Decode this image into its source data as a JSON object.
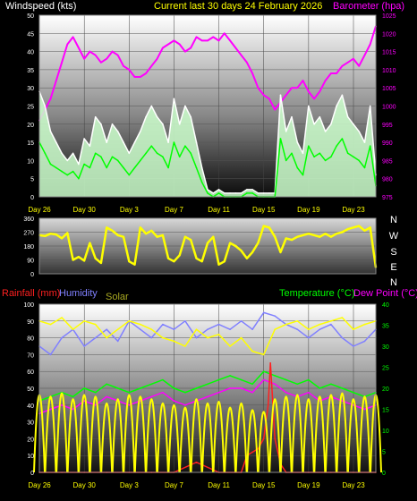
{
  "header": {
    "wind_label": "Windspeed (kts)",
    "title": "Current last 30 days 24 February 2026",
    "baro_label": "Barometer (hpa)"
  },
  "colors": {
    "wind_label": "#ffffff",
    "title": "#ffff00",
    "barometer": "#ff00ff",
    "wind_gust": "#ffffff",
    "wind_avg": "#00ff00",
    "wind_fill": "#ccffcc",
    "direction": "#ffff00",
    "rainfall": "#ff2020",
    "humidity": "#8080ff",
    "solar": "#ffff00",
    "temperature": "#00ff00",
    "dew_point": "#ff00ff",
    "tick_text": "#ffffff",
    "x_tick_text": "#ffff00",
    "compass_text": "#ffffff"
  },
  "chart_data": [
    {
      "type": "line",
      "name": "wind-barometer",
      "title": "Current last 30 days 24 February 2026",
      "y_left_label": "Windspeed (kts)",
      "y_left_ticks": [
        0,
        5,
        10,
        15,
        20,
        25,
        30,
        35,
        40,
        45,
        50
      ],
      "y_left_range": [
        0,
        50
      ],
      "y_right_label": "Barometer (hpa)",
      "y_right_ticks": [
        975,
        980,
        985,
        990,
        995,
        1000,
        1005,
        1010,
        1015,
        1020,
        1025
      ],
      "y_right_range": [
        975,
        1025
      ],
      "x_tick_labels": [
        "Day 26",
        "Day 30",
        "Day 3",
        "Day 7",
        "Day 11",
        "Day 15",
        "Day 19",
        "Day 23"
      ],
      "x_range": [
        0,
        30
      ],
      "x_tick_positions": [
        2,
        6,
        10,
        14,
        18,
        22,
        26,
        30
      ],
      "series": [
        {
          "name": "Barometer",
          "axis": "right",
          "x": [
            0,
            0.5,
            1,
            1.5,
            2,
            2.5,
            3,
            3.5,
            4,
            4.5,
            5,
            5.5,
            6,
            6.5,
            7,
            7.5,
            8,
            8.5,
            9,
            9.5,
            10,
            10.5,
            11,
            11.5,
            12,
            12.5,
            13,
            13.5,
            14,
            14.5,
            15,
            15.5,
            16,
            16.5,
            17,
            17.5,
            18,
            18.5,
            19,
            19.5,
            20,
            20.5,
            21,
            21.5,
            22,
            22.5,
            23,
            23.5,
            24,
            24.5,
            25,
            25.5,
            26,
            26.5,
            27,
            27.5,
            28,
            28.5,
            29,
            29.5,
            30
          ],
          "values": [
            996,
            999,
            1002,
            1007,
            1012,
            1017,
            1019,
            1016,
            1013,
            1015,
            1014,
            1012,
            1013,
            1015,
            1014,
            1011,
            1010,
            1008,
            1008,
            1009,
            1011,
            1013,
            1016,
            1017,
            1018,
            1017,
            1015,
            1016,
            1019,
            1018,
            1018,
            1019,
            1018,
            1020,
            1018,
            1016,
            1014,
            1012,
            1009,
            1005,
            1003,
            1002,
            999,
            1001,
            1003,
            1005,
            1005,
            1007,
            1004,
            1002,
            1004,
            1007,
            1009,
            1009,
            1011,
            1012,
            1013,
            1011,
            1014,
            1017,
            1022
          ]
        },
        {
          "name": "Wind gust",
          "axis": "left",
          "x": [
            0,
            0.5,
            1,
            1.5,
            2,
            2.5,
            3,
            3.5,
            4,
            4.5,
            5,
            5.5,
            6,
            6.5,
            7,
            7.5,
            8,
            8.5,
            9,
            9.5,
            10,
            10.5,
            11,
            11.5,
            12,
            12.5,
            13,
            13.5,
            14,
            14.5,
            15,
            15.5,
            16,
            16.5,
            17,
            17.5,
            18,
            18.5,
            19,
            19.5,
            20,
            20.5,
            21,
            21.5,
            22,
            22.5,
            23,
            23.5,
            24,
            24.5,
            25,
            25.5,
            26,
            26.5,
            27,
            27.5,
            28,
            28.5,
            29,
            29.5,
            30
          ],
          "values": [
            29,
            25,
            18,
            15,
            12,
            10,
            12,
            9,
            16,
            14,
            22,
            20,
            15,
            20,
            18,
            15,
            12,
            15,
            18,
            22,
            25,
            22,
            20,
            15,
            27,
            20,
            25,
            22,
            15,
            8,
            2,
            1,
            2,
            1,
            1,
            1,
            1,
            2,
            2,
            1,
            1,
            1,
            1,
            28,
            18,
            22,
            15,
            12,
            25,
            20,
            22,
            18,
            20,
            25,
            28,
            22,
            20,
            18,
            15,
            25,
            6
          ]
        },
        {
          "name": "Wind average",
          "axis": "left",
          "x": [
            0,
            0.5,
            1,
            1.5,
            2,
            2.5,
            3,
            3.5,
            4,
            4.5,
            5,
            5.5,
            6,
            6.5,
            7,
            7.5,
            8,
            8.5,
            9,
            9.5,
            10,
            10.5,
            11,
            11.5,
            12,
            12.5,
            13,
            13.5,
            14,
            14.5,
            15,
            15.5,
            16,
            16.5,
            17,
            17.5,
            18,
            18.5,
            19,
            19.5,
            20,
            20.5,
            21,
            21.5,
            22,
            22.5,
            23,
            23.5,
            24,
            24.5,
            25,
            25.5,
            26,
            26.5,
            27,
            27.5,
            28,
            28.5,
            29,
            29.5,
            30
          ],
          "values": [
            15,
            12,
            9,
            8,
            7,
            6,
            7,
            5,
            9,
            8,
            12,
            11,
            8,
            11,
            10,
            8,
            6,
            8,
            10,
            12,
            14,
            12,
            11,
            8,
            15,
            11,
            14,
            12,
            8,
            4,
            1,
            0,
            1,
            0,
            0,
            0,
            0,
            1,
            1,
            0,
            0,
            0,
            0,
            16,
            10,
            12,
            8,
            6,
            14,
            11,
            12,
            10,
            11,
            14,
            16,
            12,
            11,
            10,
            8,
            14,
            3
          ]
        }
      ]
    },
    {
      "type": "line",
      "name": "wind-direction",
      "y_left_ticks": [
        0,
        90,
        180,
        270,
        360
      ],
      "y_left_range": [
        0,
        360
      ],
      "compass_labels": [
        "N",
        "W",
        "S",
        "E",
        "N"
      ],
      "x_range": [
        0,
        30
      ],
      "series": [
        {
          "name": "Wind direction",
          "x": [
            0,
            0.5,
            1,
            1.5,
            2,
            2.5,
            3,
            3.5,
            4,
            4.5,
            5,
            5.5,
            6,
            6.5,
            7,
            7.5,
            8,
            8.5,
            9,
            9.5,
            10,
            10.5,
            11,
            11.5,
            12,
            12.5,
            13,
            13.5,
            14,
            14.5,
            15,
            15.5,
            16,
            16.5,
            17,
            17.5,
            18,
            18.5,
            19,
            19.5,
            20,
            20.5,
            21,
            21.5,
            22,
            22.5,
            23,
            23.5,
            24,
            24.5,
            25,
            25.5,
            26,
            26.5,
            27,
            27.5,
            28,
            28.5,
            29,
            29.5,
            30
          ],
          "values": [
            250,
            245,
            260,
            255,
            230,
            265,
            90,
            110,
            85,
            200,
            100,
            70,
            300,
            280,
            250,
            240,
            80,
            60,
            300,
            260,
            280,
            240,
            250,
            100,
            80,
            120,
            240,
            220,
            100,
            80,
            200,
            240,
            60,
            80,
            200,
            180,
            150,
            100,
            140,
            200,
            310,
            300,
            240,
            140,
            230,
            220,
            240,
            250,
            260,
            250,
            240,
            260,
            240,
            260,
            270,
            290,
            300,
            310,
            280,
            300,
            40
          ]
        }
      ]
    },
    {
      "type": "line",
      "name": "rain-humidity-solar-temperature",
      "y_left_ticks": [
        0,
        10,
        20,
        30,
        40,
        50,
        60,
        70,
        80,
        90,
        100
      ],
      "y_left_range": [
        0,
        100
      ],
      "y_right_ticks": [
        0,
        5,
        10,
        15,
        20,
        25,
        30,
        35,
        40
      ],
      "y_right_range": [
        0,
        40
      ],
      "legend": [
        "Rainfall (mm)",
        "Humidity",
        "Solar",
        "Temperature (°C)",
        "Dew Point (°C)"
      ],
      "x_tick_labels": [
        "Day 26",
        "Day 30",
        "Day 3",
        "Day 7",
        "Day 11",
        "Day 15",
        "Day 19",
        "Day 23"
      ],
      "x_range": [
        0,
        30
      ],
      "x_tick_positions": [
        2,
        6,
        10,
        14,
        18,
        22,
        26,
        30
      ],
      "series": [
        {
          "name": "Humidity",
          "axis": "left",
          "x": [
            0,
            1,
            2,
            3,
            4,
            5,
            6,
            7,
            8,
            9,
            10,
            11,
            12,
            13,
            14,
            15,
            16,
            17,
            18,
            19,
            20,
            21,
            22,
            23,
            24,
            25,
            26,
            27,
            28,
            29,
            30
          ],
          "values": [
            75,
            70,
            80,
            85,
            75,
            80,
            85,
            78,
            90,
            85,
            80,
            88,
            85,
            90,
            80,
            85,
            88,
            85,
            90,
            85,
            95,
            93,
            88,
            85,
            80,
            85,
            88,
            80,
            75,
            78,
            85
          ]
        },
        {
          "name": "Solar",
          "axis": "left",
          "x": [
            0,
            1,
            2,
            3,
            4,
            5,
            6,
            7,
            8,
            9,
            10,
            11,
            12,
            13,
            14,
            15,
            16,
            17,
            18,
            19,
            20,
            21,
            22,
            23,
            24,
            25,
            26,
            27,
            28,
            29,
            30
          ],
          "values": [
            90,
            88,
            92,
            85,
            90,
            88,
            80,
            85,
            90,
            88,
            85,
            80,
            78,
            75,
            85,
            80,
            82,
            75,
            80,
            72,
            70,
            85,
            88,
            90,
            85,
            88,
            90,
            92,
            85,
            88,
            90
          ]
        },
        {
          "name": "Temperature",
          "axis": "right",
          "x": [
            0,
            1,
            2,
            3,
            4,
            5,
            6,
            7,
            8,
            9,
            10,
            11,
            12,
            13,
            14,
            15,
            16,
            17,
            18,
            19,
            20,
            21,
            22,
            23,
            24,
            25,
            26,
            27,
            28,
            29,
            30
          ],
          "values": [
            17,
            18,
            19,
            18,
            20,
            19,
            21,
            20,
            19,
            20,
            21,
            22,
            20,
            19,
            20,
            21,
            22,
            23,
            22,
            21,
            24,
            23,
            22,
            21,
            22,
            20,
            21,
            20,
            19,
            18,
            19
          ]
        },
        {
          "name": "Dew Point",
          "axis": "right",
          "x": [
            0,
            1,
            2,
            3,
            4,
            5,
            6,
            7,
            8,
            9,
            10,
            11,
            12,
            13,
            14,
            15,
            16,
            17,
            18,
            19,
            20,
            21,
            22,
            23,
            24,
            25,
            26,
            27,
            28,
            29,
            30
          ],
          "values": [
            14,
            15,
            16,
            15,
            17,
            16,
            18,
            17,
            16,
            17,
            18,
            19,
            17,
            16,
            17,
            18,
            19,
            20,
            20,
            19,
            22,
            21,
            19,
            18,
            19,
            17,
            18,
            17,
            16,
            15,
            16
          ]
        },
        {
          "name": "Rainfall",
          "axis": "left",
          "x": [
            0,
            2,
            4,
            6,
            8,
            10,
            12,
            14,
            16,
            18,
            18.5,
            19,
            19.5,
            20,
            20.4,
            20.6,
            21,
            21.5,
            22,
            24,
            26,
            28,
            30
          ],
          "values": [
            0,
            0,
            0,
            0,
            0,
            0,
            0,
            6,
            0,
            0,
            10,
            12,
            14,
            20,
            40,
            65,
            20,
            5,
            0,
            0,
            0,
            0,
            0
          ]
        }
      ]
    }
  ]
}
